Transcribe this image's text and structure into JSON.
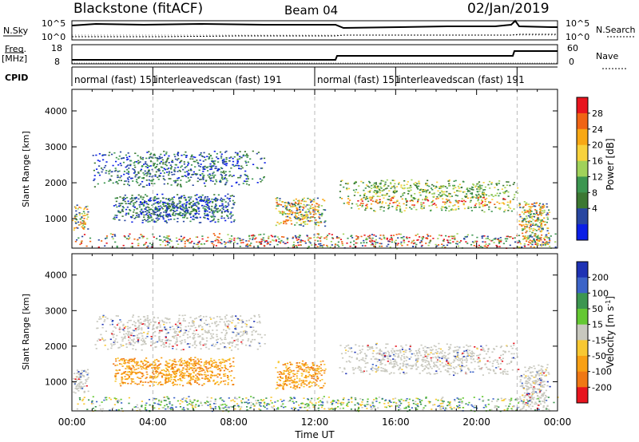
{
  "header": {
    "station": "Blackstone (fitACF)",
    "beam": "Beam 04",
    "date": "02/Jan/2019"
  },
  "noise_panel": {
    "left_label": "N.Sky",
    "right_label": "N.Search",
    "left_ticks": [
      "10^5",
      "10^0"
    ],
    "right_ticks": [
      "10^5",
      "10^0"
    ]
  },
  "freq_panel": {
    "left_label_1": "Freq.",
    "left_label_2": "[MHz]",
    "right_label": "Nave",
    "left_ticks": [
      "18",
      "8"
    ],
    "right_ticks": [
      "60",
      "0"
    ]
  },
  "cpid": {
    "label": "CPID",
    "segments": [
      {
        "start_hour": 0.0,
        "end_hour": 4.0,
        "text": "normal (fast)  151"
      },
      {
        "start_hour": 4.0,
        "end_hour": 12.0,
        "text": "interleavedscan (fast)  191"
      },
      {
        "start_hour": 12.0,
        "end_hour": 16.0,
        "text": "normal (fast)  151"
      },
      {
        "start_hour": 16.0,
        "end_hour": 22.0,
        "text": "interleavedscan (fast)  191"
      }
    ]
  },
  "chart_data": [
    {
      "type": "heatmap",
      "name": "power",
      "ylabel": "Slant Range [km]",
      "y_ticks": [
        1000,
        2000,
        3000,
        4000
      ],
      "ylim": [
        180,
        4600
      ],
      "xlim_hours": [
        0,
        24
      ],
      "colorbar_label": "Power [dB]",
      "colorbar_ticks": [
        "28",
        "24",
        "20",
        "16",
        "12",
        "8",
        "4"
      ],
      "colorbar_colors": [
        "#e8141e",
        "#f06414",
        "#f8a814",
        "#f8d23c",
        "#a0d25a",
        "#3c9650",
        "#3c7832",
        "#2846a0",
        "#0a1ee6"
      ],
      "echo_regions": [
        {
          "hours": [
            0.0,
            0.8
          ],
          "range_km": [
            700,
            1400
          ],
          "level": "mixed"
        },
        {
          "hours": [
            1.0,
            9.5
          ],
          "range_km": [
            1900,
            2900
          ],
          "level": "weak"
        },
        {
          "hours": [
            2.0,
            8.0
          ],
          "range_km": [
            900,
            1700
          ],
          "level": "weak"
        },
        {
          "hours": [
            10.0,
            12.5
          ],
          "range_km": [
            800,
            1600
          ],
          "level": "mixed"
        },
        {
          "hours": [
            13.2,
            22.0
          ],
          "range_km": [
            1200,
            2100
          ],
          "level": "strong"
        },
        {
          "hours": [
            22.0,
            23.6
          ],
          "range_km": [
            200,
            1500
          ],
          "level": "mixed"
        },
        {
          "hours": [
            0.0,
            24.0
          ],
          "range_km": [
            180,
            600
          ],
          "level": "near"
        }
      ]
    },
    {
      "type": "heatmap",
      "name": "velocity",
      "ylabel": "Slant Range [km]",
      "xlabel": "Time UT",
      "x_ticks": [
        "00:00",
        "04:00",
        "08:00",
        "12:00",
        "16:00",
        "20:00",
        "00:00"
      ],
      "y_ticks": [
        1000,
        2000,
        3000,
        4000
      ],
      "ylim": [
        180,
        4600
      ],
      "xlim_hours": [
        0,
        24
      ],
      "colorbar_label": "Velocity [m s",
      "colorbar_label_sup": "-1",
      "colorbar_ticks": [
        "200",
        "100",
        "50",
        "15",
        "-15",
        "-50",
        "-100",
        "-200"
      ],
      "colorbar_colors": [
        "#1e32b4",
        "#3c64c8",
        "#3c9650",
        "#64c832",
        "#c8c8be",
        "#f8c832",
        "#f8a014",
        "#f07814",
        "#e8141e"
      ],
      "echo_regions": [
        {
          "hours": [
            0.0,
            0.8
          ],
          "range_km": [
            700,
            1400
          ],
          "level": "ground"
        },
        {
          "hours": [
            1.0,
            9.5
          ],
          "range_km": [
            1900,
            2900
          ],
          "level": "ground"
        },
        {
          "hours": [
            2.0,
            8.0
          ],
          "range_km": [
            900,
            1700
          ],
          "level": "neg"
        },
        {
          "hours": [
            10.0,
            12.5
          ],
          "range_km": [
            800,
            1600
          ],
          "level": "neg"
        },
        {
          "hours": [
            13.2,
            22.0
          ],
          "range_km": [
            1200,
            2100
          ],
          "level": "ground"
        },
        {
          "hours": [
            22.0,
            23.6
          ],
          "range_km": [
            200,
            1500
          ],
          "level": "ground"
        },
        {
          "hours": [
            0.0,
            24.0
          ],
          "range_km": [
            180,
            600
          ],
          "level": "nearmix"
        }
      ]
    }
  ]
}
